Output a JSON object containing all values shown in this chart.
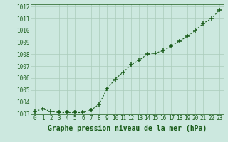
{
  "x": [
    0,
    1,
    2,
    3,
    4,
    5,
    6,
    7,
    8,
    9,
    10,
    11,
    12,
    13,
    14,
    15,
    16,
    17,
    18,
    19,
    20,
    21,
    22,
    23
  ],
  "y": [
    1003.2,
    1003.4,
    1003.2,
    1003.1,
    1003.1,
    1003.1,
    1003.1,
    1003.3,
    1003.8,
    1005.1,
    1005.9,
    1006.5,
    1007.1,
    1007.5,
    1008.0,
    1008.1,
    1008.3,
    1008.7,
    1009.1,
    1009.5,
    1010.0,
    1010.6,
    1011.0,
    1011.7
  ],
  "ylim": [
    1003.0,
    1012.0
  ],
  "yticks": [
    1003,
    1004,
    1005,
    1006,
    1007,
    1008,
    1009,
    1010,
    1011,
    1012
  ],
  "xticks": [
    0,
    1,
    2,
    3,
    4,
    5,
    6,
    7,
    8,
    9,
    10,
    11,
    12,
    13,
    14,
    15,
    16,
    17,
    18,
    19,
    20,
    21,
    22,
    23
  ],
  "xlabel": "Graphe pression niveau de la mer (hPa)",
  "line_color": "#1a5c1a",
  "marker": "+",
  "background_color": "#cce8df",
  "grid_color": "#aaccbb",
  "tick_label_fontsize": 5.5,
  "xlabel_fontsize": 7.0,
  "xlim": [
    -0.5,
    23.5
  ]
}
